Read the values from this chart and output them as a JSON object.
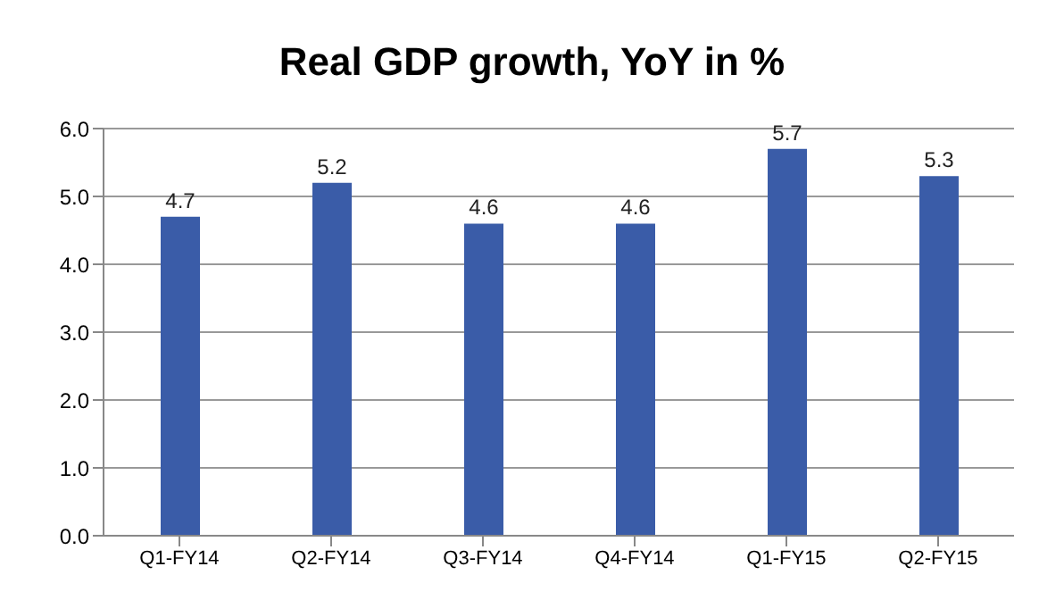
{
  "chart_data": {
    "type": "bar",
    "title": "Real GDP growth, YoY in %",
    "categories": [
      "Q1-FY14",
      "Q2-FY14",
      "Q3-FY14",
      "Q4-FY14",
      "Q1-FY15",
      "Q2-FY15"
    ],
    "values": [
      4.7,
      5.2,
      4.6,
      4.6,
      5.7,
      5.3
    ],
    "color": "#3a5ca8",
    "ylim": [
      0,
      6
    ],
    "yticks": [
      {
        "value": 0,
        "label": "0.0"
      },
      {
        "value": 1,
        "label": "1.0"
      },
      {
        "value": 2,
        "label": "2.0"
      },
      {
        "value": 3,
        "label": "3.0"
      },
      {
        "value": 4,
        "label": "4.0"
      },
      {
        "value": 5,
        "label": "5.0"
      },
      {
        "value": 6,
        "label": "6.0"
      }
    ],
    "grid": "y",
    "data_labels": true
  }
}
